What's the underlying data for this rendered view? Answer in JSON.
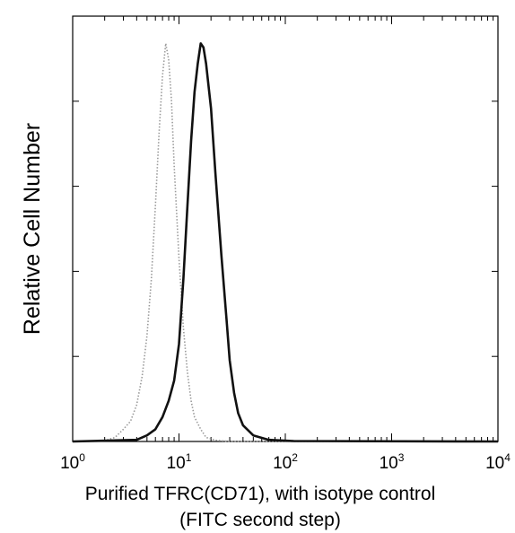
{
  "chart_data": {
    "type": "line",
    "title": "",
    "xlabel": "Purified TFRC(CD71), with isotype control",
    "xlabel_line2": "(FITC second step)",
    "ylabel": "Relative Cell Number",
    "x_scale": "log",
    "xlim": [
      1,
      10000
    ],
    "ylim": [
      0,
      1
    ],
    "x_ticks": [
      {
        "base": "10",
        "exp": "0",
        "value": 1
      },
      {
        "base": "10",
        "exp": "1",
        "value": 10
      },
      {
        "base": "10",
        "exp": "2",
        "value": 100
      },
      {
        "base": "10",
        "exp": "3",
        "value": 1000
      },
      {
        "base": "10",
        "exp": "4",
        "value": 10000
      }
    ],
    "y_ticks_labeled": false,
    "grid": false,
    "legend": "none",
    "series": [
      {
        "color": "#9a9a9a",
        "style": "dotted",
        "points": [
          [
            1.0,
            0.0
          ],
          [
            2.0,
            0.002
          ],
          [
            2.5,
            0.01
          ],
          [
            3.0,
            0.03
          ],
          [
            3.5,
            0.05
          ],
          [
            4.0,
            0.09
          ],
          [
            4.5,
            0.16
          ],
          [
            5.0,
            0.26
          ],
          [
            5.5,
            0.4
          ],
          [
            6.0,
            0.58
          ],
          [
            6.5,
            0.76
          ],
          [
            7.0,
            0.9
          ],
          [
            7.5,
            0.98
          ],
          [
            8.0,
            0.94
          ],
          [
            8.5,
            0.84
          ],
          [
            9.0,
            0.68
          ],
          [
            10.0,
            0.45
          ],
          [
            11.0,
            0.28
          ],
          [
            12.0,
            0.17
          ],
          [
            13.0,
            0.1
          ],
          [
            14.0,
            0.06
          ],
          [
            16.0,
            0.03
          ],
          [
            18.0,
            0.01
          ],
          [
            22.0,
            0.003
          ],
          [
            30.0,
            0.0
          ],
          [
            10000,
            0.0
          ]
        ]
      },
      {
        "color": "#111111",
        "style": "solid",
        "points": [
          [
            1.0,
            0.0
          ],
          [
            4.0,
            0.004
          ],
          [
            5.0,
            0.015
          ],
          [
            6.0,
            0.03
          ],
          [
            7.0,
            0.06
          ],
          [
            8.0,
            0.1
          ],
          [
            9.0,
            0.15
          ],
          [
            10.0,
            0.24
          ],
          [
            11.0,
            0.4
          ],
          [
            12.0,
            0.58
          ],
          [
            13.0,
            0.74
          ],
          [
            14.0,
            0.86
          ],
          [
            15.0,
            0.93
          ],
          [
            16.0,
            0.98
          ],
          [
            17.0,
            0.97
          ],
          [
            18.0,
            0.93
          ],
          [
            20.0,
            0.82
          ],
          [
            22.0,
            0.66
          ],
          [
            25.0,
            0.46
          ],
          [
            28.0,
            0.3
          ],
          [
            30.0,
            0.2
          ],
          [
            33.0,
            0.12
          ],
          [
            36.0,
            0.07
          ],
          [
            40.0,
            0.04
          ],
          [
            50.0,
            0.015
          ],
          [
            70.0,
            0.004
          ],
          [
            120.0,
            0.001
          ],
          [
            10000,
            0.0
          ]
        ]
      }
    ]
  }
}
